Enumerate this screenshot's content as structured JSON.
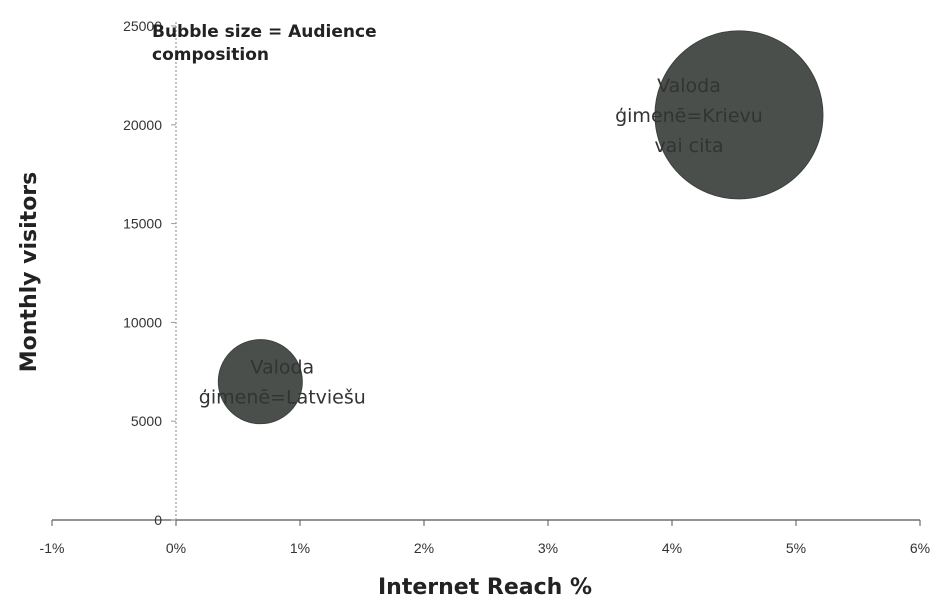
{
  "chart_data": {
    "type": "bubble",
    "xlabel": "Internet Reach %",
    "ylabel": "Monthly visitors",
    "annotation": "Bubble size  = Audience composition",
    "xlim": [
      -0.01,
      0.06
    ],
    "ylim": [
      0,
      25000
    ],
    "x_ticks": [
      -0.01,
      0,
      0.01,
      0.02,
      0.03,
      0.04,
      0.05,
      0.06
    ],
    "x_tick_labels": [
      "-1%",
      "0%",
      "1%",
      "2%",
      "3%",
      "4%",
      "5%",
      "6%"
    ],
    "y_ticks": [
      0,
      5000,
      10000,
      15000,
      20000,
      25000
    ],
    "y_tick_labels": [
      "0",
      "5000",
      "10000",
      "15000",
      "20000",
      "25000"
    ],
    "grid": false,
    "series": [
      {
        "x": 0.0068,
        "y": 7000,
        "size": 1,
        "label": [
          "Valoda",
          "ģimenē=Latviešu"
        ]
      },
      {
        "x": 0.0454,
        "y": 20500,
        "size": 4,
        "label": [
          "Valoda",
          "ģimenē=Krievu",
          "vai cita"
        ]
      }
    ],
    "colors": {
      "bubble": "#4a4f4c",
      "bubble_edge": "#3d423f",
      "axis": "#555555",
      "zero_line": "#9a9a9a"
    }
  }
}
